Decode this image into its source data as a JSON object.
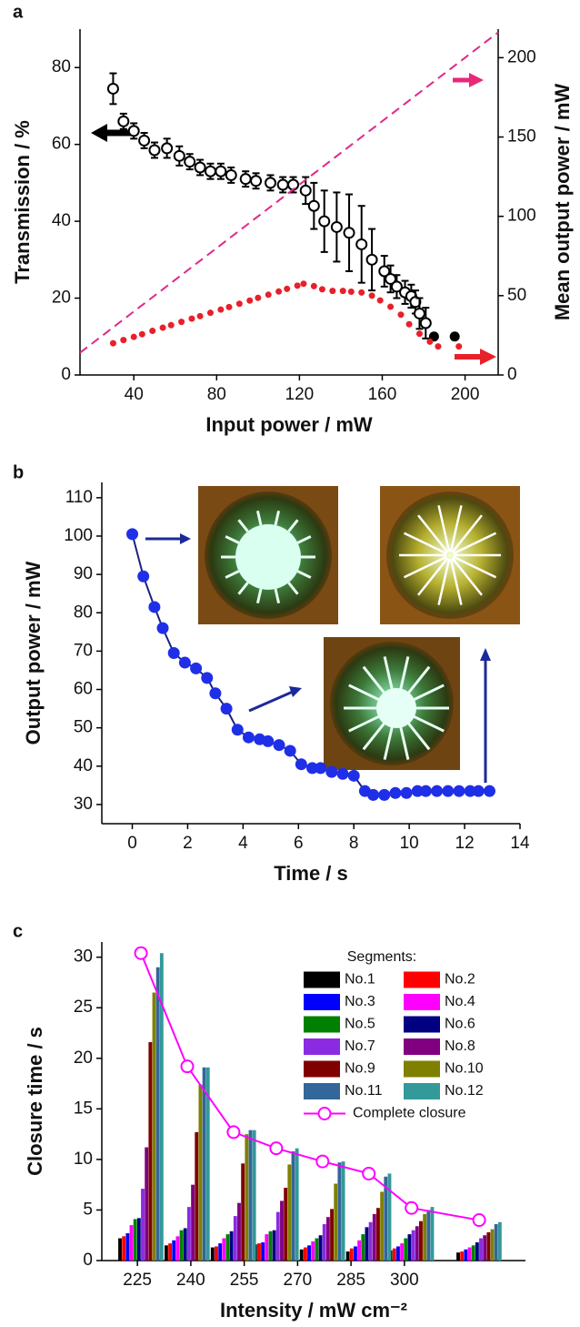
{
  "chart_data": [
    {
      "type": "scatter",
      "panel_label": "a",
      "xlabel": "Input power / mW",
      "ylabel": "Transmission / %",
      "y2label": "Mean output power / mW",
      "xlim": [
        14,
        216
      ],
      "xticks": [
        40,
        80,
        120,
        160,
        200
      ],
      "ylim": [
        0,
        90
      ],
      "yticks": [
        0,
        20,
        40,
        60,
        80
      ],
      "y2lim": [
        0,
        218
      ],
      "y2ticks": [
        0,
        50,
        100,
        150,
        200
      ],
      "series": [
        {
          "color": "#000000",
          "marker": "open-circle",
          "x": [
            30,
            35,
            40,
            45,
            50,
            56,
            62,
            67,
            72,
            77,
            82,
            87,
            94,
            99,
            106,
            112,
            117,
            123,
            127,
            132,
            138,
            144,
            150,
            155,
            161,
            164,
            167,
            171,
            174,
            176,
            178,
            181
          ],
          "values": [
            74.5,
            66,
            63.5,
            61,
            58.5,
            59,
            57,
            55.5,
            54,
            53,
            53,
            52,
            51,
            50.5,
            50,
            49.5,
            49.5,
            48,
            44,
            40,
            38.5,
            37,
            34,
            30,
            27,
            25,
            23,
            21.5,
            20.5,
            19,
            16,
            13.5
          ],
          "errors": [
            4,
            2,
            2,
            2,
            2,
            2.5,
            2.5,
            2,
            2,
            2,
            2,
            2,
            2,
            2,
            2,
            2,
            2,
            3.5,
            6,
            8,
            9,
            10,
            10,
            8,
            4,
            3.5,
            3,
            3,
            3,
            3,
            4,
            4
          ]
        },
        {
          "color": "#000000",
          "marker": "filled-circle",
          "x": [
            185,
            195
          ],
          "values": [
            10,
            10
          ]
        },
        {
          "color": "#e8202a",
          "marker": "filled-circle",
          "axis": "y2",
          "x": [
            30,
            35,
            40,
            44,
            49,
            54,
            58,
            63,
            68,
            72,
            77,
            82,
            86,
            91,
            96,
            100,
            105,
            110,
            114,
            119,
            122,
            127,
            131,
            136,
            141,
            145,
            150,
            155,
            159,
            164,
            169,
            173,
            178,
            183,
            187,
            197
          ],
          "values": [
            20,
            22,
            24,
            25.7,
            27.8,
            29.8,
            31.4,
            33.5,
            35.5,
            37.1,
            39.2,
            41.2,
            42.8,
            44.9,
            46.9,
            48.6,
            50.6,
            52.6,
            54.3,
            56.3,
            57.5,
            56,
            54,
            53,
            53,
            52.5,
            52,
            50,
            47,
            43,
            38,
            32,
            26,
            21,
            18,
            18
          ]
        },
        {
          "color": "#e0288a",
          "style": "dashed",
          "axis": "y2",
          "x": [
            14,
            216
          ],
          "values": [
            14,
            216
          ]
        }
      ]
    },
    {
      "type": "line",
      "panel_label": "b",
      "xlabel": "Time / s",
      "ylabel": "Output power / mW",
      "xlim": [
        -1.1,
        14
      ],
      "xticks": [
        0,
        2,
        4,
        6,
        8,
        10,
        12,
        14
      ],
      "ylim": [
        25,
        114
      ],
      "yticks": [
        30,
        40,
        50,
        60,
        70,
        80,
        90,
        100,
        110
      ],
      "series": [
        {
          "color": "#1f2fe8",
          "line_color": "#1a237e",
          "x": [
            0,
            0.4,
            0.8,
            1.1,
            1.5,
            1.9,
            2.3,
            2.7,
            3.0,
            3.4,
            3.8,
            4.2,
            4.6,
            4.9,
            5.3,
            5.7,
            6.1,
            6.5,
            6.8,
            7.2,
            7.6,
            8.0,
            8.4,
            8.7,
            9.1,
            9.5,
            9.9,
            10.3,
            10.6,
            11.0,
            11.4,
            11.8,
            12.2,
            12.5,
            12.9
          ],
          "values": [
            100.5,
            89.5,
            81.5,
            76,
            69.5,
            67,
            65.5,
            63,
            59,
            55,
            49.5,
            47.5,
            47,
            46.5,
            45.5,
            44,
            40.5,
            39.5,
            39.5,
            38.5,
            38,
            37.5,
            33.5,
            32.5,
            32.5,
            33,
            33,
            33.5,
            33.5,
            33.5,
            33.5,
            33.5,
            33.5,
            33.5,
            33.5
          ]
        }
      ]
    },
    {
      "type": "bar",
      "panel_label": "c",
      "xlabel": "Intensity / mW cm⁻²",
      "ylabel": "Closure time / s",
      "legend_title": "Segments:",
      "xlim": [
        215,
        334
      ],
      "xticks": [
        225,
        240,
        255,
        270,
        285,
        300
      ],
      "ylim": [
        0,
        31.5
      ],
      "yticks": [
        0,
        5,
        10,
        15,
        20,
        25,
        30
      ],
      "x": [
        226,
        239,
        252,
        264,
        277,
        290,
        302,
        321
      ],
      "series": [
        {
          "name": "No.1",
          "color": "#000000",
          "values": [
            2.2,
            1.5,
            1.3,
            1.6,
            1.1,
            0.9,
            1.0,
            0.8
          ]
        },
        {
          "name": "No.2",
          "color": "#ff0000",
          "values": [
            2.4,
            1.7,
            1.4,
            1.7,
            1.3,
            1.2,
            1.2,
            0.9
          ]
        },
        {
          "name": "No.3",
          "color": "#0000ff",
          "values": [
            2.7,
            2.0,
            1.7,
            1.8,
            1.5,
            1.4,
            1.4,
            1.1
          ]
        },
        {
          "name": "No.4",
          "color": "#ff00ff",
          "values": [
            3.5,
            2.4,
            2.2,
            2.6,
            1.9,
            2.0,
            1.7,
            1.3
          ]
        },
        {
          "name": "No.5",
          "color": "#008000",
          "values": [
            4.1,
            3.0,
            2.6,
            2.9,
            2.2,
            2.6,
            2.2,
            1.5
          ]
        },
        {
          "name": "No.6",
          "color": "#000080",
          "values": [
            4.2,
            3.2,
            2.9,
            3.0,
            2.5,
            3.3,
            2.6,
            1.8
          ]
        },
        {
          "name": "No.7",
          "color": "#8a2be2",
          "values": [
            7.1,
            5.3,
            4.4,
            4.8,
            3.6,
            3.8,
            3.0,
            2.2
          ]
        },
        {
          "name": "No.8",
          "color": "#800080",
          "values": [
            11.2,
            7.5,
            5.7,
            5.9,
            4.3,
            4.6,
            3.4,
            2.5
          ]
        },
        {
          "name": "No.9",
          "color": "#800000",
          "values": [
            21.6,
            12.7,
            9.6,
            7.2,
            5.1,
            5.2,
            3.9,
            2.8
          ]
        },
        {
          "name": "No.10",
          "color": "#808000",
          "values": [
            26.5,
            17.4,
            12.5,
            9.5,
            7.6,
            6.8,
            4.6,
            3.1
          ]
        },
        {
          "name": "No.11",
          "color": "#336699",
          "values": [
            29.0,
            19.1,
            12.9,
            10.8,
            9.7,
            8.3,
            5.0,
            3.6
          ]
        },
        {
          "name": "No.12",
          "color": "#339999",
          "values": [
            30.4,
            19.1,
            12.9,
            11.1,
            9.8,
            8.6,
            5.3,
            3.8
          ]
        },
        {
          "name": "Complete closure",
          "color": "#ff00ff",
          "type": "line",
          "values": [
            30.4,
            19.2,
            12.7,
            11.1,
            9.8,
            8.6,
            5.2,
            4.0
          ]
        }
      ]
    }
  ]
}
